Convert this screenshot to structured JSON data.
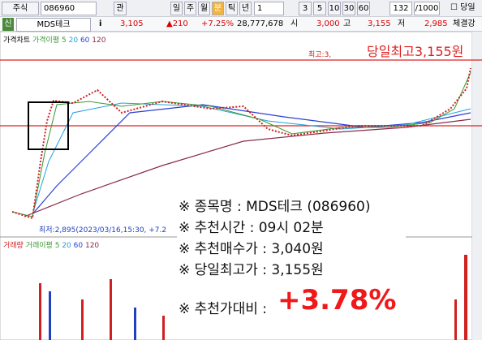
{
  "toolbar": {
    "market": "주식",
    "code": "086960",
    "buttons": [
      "관",
      "일",
      "주",
      "월",
      "분",
      "틱",
      "년"
    ],
    "unit": "1",
    "intervals": [
      "3",
      "5",
      "10",
      "30",
      "60"
    ],
    "count": "132",
    "total": "/1000",
    "today": "당일"
  },
  "quote": {
    "badge": "신",
    "name": "MDS테크",
    "info": "i",
    "price": "3,105",
    "change": "▲210",
    "rate": "+7.25%",
    "volume": "28,777,678",
    "open_label": "시",
    "open": "3,000",
    "high_label": "고",
    "high": "3,155",
    "low_label": "저",
    "low": "2,985",
    "strength": "체결강"
  },
  "price_chart": {
    "legend": [
      "가격차트",
      "가격이평",
      "5",
      "20",
      "60",
      "120"
    ],
    "high_tag": "최고:3,",
    "high_note": "당일최고3,155원",
    "low_tag": "최저:2,895(2023/03/16,15:30, +7.2"
  },
  "volume_chart": {
    "legend": [
      "거래량",
      "거래이평",
      "5",
      "20",
      "60",
      "120"
    ]
  },
  "note": {
    "lines": [
      "※ 종목명 : MDS테크 (086960)",
      "※ 추천시간 : 09시 02분",
      "※ 추천매수가 : 3,040원",
      "※ 당일최고가 : 3,155원"
    ],
    "compare_label": "※ 추천가대비 :",
    "compare_value": "+3.78%"
  }
}
